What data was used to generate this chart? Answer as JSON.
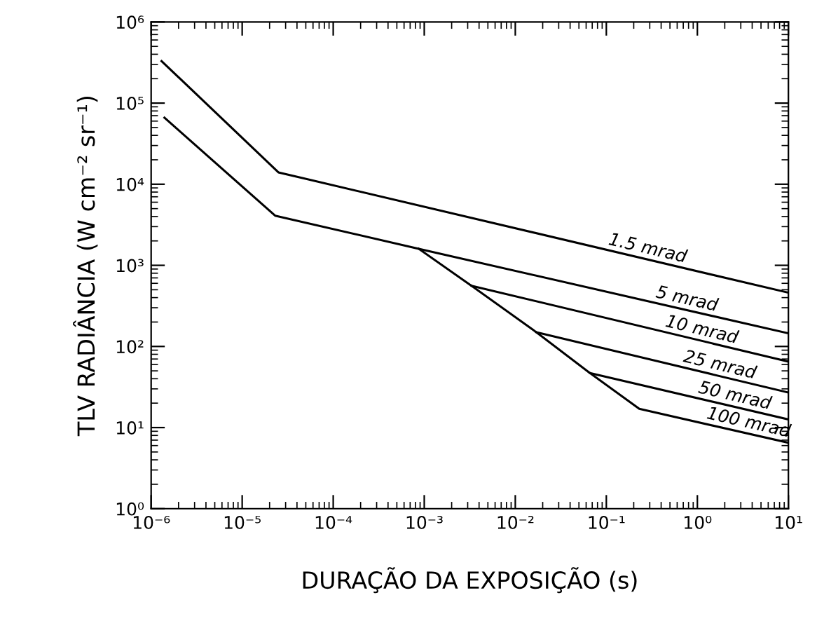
{
  "chart_data": {
    "type": "line",
    "xlabel": "DURAÇÃO DA EXPOSIÇÃO (s)",
    "ylabel": "TLV RADIÂNCIA (W cm⁻² sr⁻¹)",
    "log": "xy",
    "grid": false,
    "legend": "right",
    "marker": "none",
    "line_style": "solid",
    "xlim": [
      1e-06,
      10
    ],
    "ylim": [
      1,
      1000000
    ],
    "xticks": [
      {
        "value": 1e-06,
        "label": "10⁻⁶"
      },
      {
        "value": 1e-05,
        "label": "10⁻⁵"
      },
      {
        "value": 0.0001,
        "label": "10⁻⁴"
      },
      {
        "value": 0.001,
        "label": "10⁻³"
      },
      {
        "value": 0.01,
        "label": "10⁻²"
      },
      {
        "value": 0.1,
        "label": "10⁻¹"
      },
      {
        "value": 1,
        "label": "10⁰"
      },
      {
        "value": 10,
        "label": "10¹"
      }
    ],
    "yticks": [
      {
        "value": 1,
        "label": "10⁰"
      },
      {
        "value": 10,
        "label": "10¹"
      },
      {
        "value": 100,
        "label": "10²"
      },
      {
        "value": 1000,
        "label": "10³"
      },
      {
        "value": 10000,
        "label": "10⁴"
      },
      {
        "value": 100000,
        "label": "10⁵"
      },
      {
        "value": 1000000,
        "label": "10⁶"
      }
    ],
    "series": [
      {
        "name": "1.5 mrad",
        "color": "#000000",
        "x": [
          1.3e-06,
          2.5e-05,
          10
        ],
        "values": [
          330000,
          14000,
          460
        ]
      },
      {
        "name": "5 mrad",
        "color": "#000000",
        "x": [
          1.4e-06,
          2.3e-05,
          0.00087,
          10
        ],
        "values": [
          66000,
          4100,
          1600,
          145
        ]
      },
      {
        "name": "10 mrad",
        "color": "#000000",
        "x": [
          0.00087,
          0.0033,
          10
        ],
        "values": [
          1600,
          560,
          65
        ]
      },
      {
        "name": "25 mrad",
        "color": "#000000",
        "x": [
          0.0033,
          0.017,
          10
        ],
        "values": [
          560,
          150,
          27
        ]
      },
      {
        "name": "50 mrad",
        "color": "#000000",
        "x": [
          0.017,
          0.066,
          10
        ],
        "values": [
          150,
          47,
          12.6
        ]
      },
      {
        "name": "100 mrad",
        "color": "#000000",
        "x": [
          0.066,
          0.23,
          10
        ],
        "values": [
          47,
          17,
          6.5
        ]
      }
    ]
  }
}
